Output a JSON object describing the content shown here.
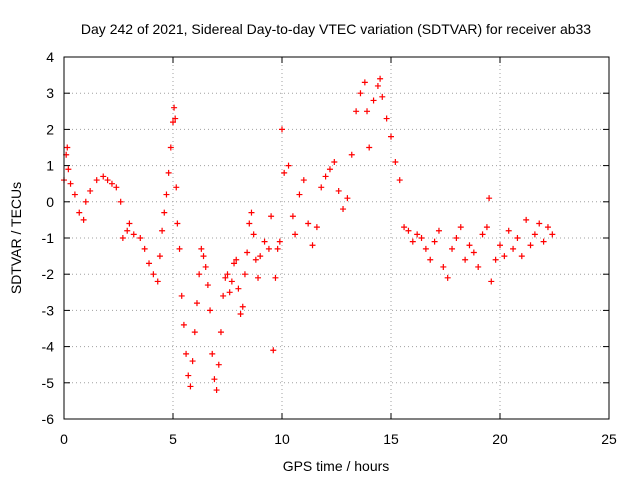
{
  "chart_data": {
    "type": "scatter",
    "title": "Day 242 of 2021, Sidereal Day-to-day VTEC variation (SDTVAR) for receiver ab33",
    "xlabel": "GPS time / hours",
    "ylabel": "SDTVAR / TECUs",
    "xlim": [
      0,
      25
    ],
    "ylim": [
      -6,
      4
    ],
    "xticks": [
      0,
      5,
      10,
      15,
      20,
      25
    ],
    "yticks": [
      -6,
      -5,
      -4,
      -3,
      -2,
      -1,
      0,
      1,
      2,
      3,
      4
    ],
    "grid": true,
    "marker": "plus",
    "color": "#ff0000",
    "series": [
      {
        "name": "SDTVAR",
        "points": [
          [
            0.0,
            0.6
          ],
          [
            0.1,
            1.3
          ],
          [
            0.15,
            1.5
          ],
          [
            0.2,
            0.9
          ],
          [
            0.3,
            0.5
          ],
          [
            0.5,
            0.2
          ],
          [
            0.7,
            -0.3
          ],
          [
            0.9,
            -0.5
          ],
          [
            1.0,
            0.0
          ],
          [
            1.2,
            0.3
          ],
          [
            1.5,
            0.6
          ],
          [
            1.8,
            0.7
          ],
          [
            2.0,
            0.6
          ],
          [
            2.2,
            0.5
          ],
          [
            2.4,
            0.4
          ],
          [
            2.6,
            0.0
          ],
          [
            2.7,
            -1.0
          ],
          [
            2.9,
            -0.8
          ],
          [
            3.0,
            -0.6
          ],
          [
            3.2,
            -0.9
          ],
          [
            3.5,
            -1.0
          ],
          [
            3.7,
            -1.3
          ],
          [
            3.9,
            -1.7
          ],
          [
            4.1,
            -2.0
          ],
          [
            4.3,
            -2.2
          ],
          [
            4.4,
            -1.5
          ],
          [
            4.5,
            -0.8
          ],
          [
            4.6,
            -0.3
          ],
          [
            4.7,
            0.2
          ],
          [
            4.8,
            0.8
          ],
          [
            4.9,
            1.5
          ],
          [
            5.0,
            2.2
          ],
          [
            5.05,
            2.6
          ],
          [
            5.1,
            2.3
          ],
          [
            5.15,
            0.4
          ],
          [
            5.2,
            -0.6
          ],
          [
            5.3,
            -1.3
          ],
          [
            5.4,
            -2.6
          ],
          [
            5.5,
            -3.4
          ],
          [
            5.6,
            -4.2
          ],
          [
            5.7,
            -4.8
          ],
          [
            5.8,
            -5.1
          ],
          [
            5.9,
            -4.4
          ],
          [
            6.0,
            -3.6
          ],
          [
            6.1,
            -2.8
          ],
          [
            6.2,
            -2.0
          ],
          [
            6.3,
            -1.3
          ],
          [
            6.4,
            -1.5
          ],
          [
            6.5,
            -1.8
          ],
          [
            6.6,
            -2.3
          ],
          [
            6.7,
            -3.0
          ],
          [
            6.8,
            -4.2
          ],
          [
            6.9,
            -4.9
          ],
          [
            7.0,
            -5.2
          ],
          [
            7.1,
            -4.5
          ],
          [
            7.2,
            -3.6
          ],
          [
            7.3,
            -2.6
          ],
          [
            7.4,
            -2.1
          ],
          [
            7.5,
            -2.0
          ],
          [
            7.6,
            -2.5
          ],
          [
            7.7,
            -2.2
          ],
          [
            7.8,
            -1.7
          ],
          [
            7.9,
            -1.6
          ],
          [
            8.0,
            -2.4
          ],
          [
            8.1,
            -3.1
          ],
          [
            8.2,
            -2.9
          ],
          [
            8.3,
            -2.0
          ],
          [
            8.4,
            -1.4
          ],
          [
            8.5,
            -0.6
          ],
          [
            8.6,
            -0.3
          ],
          [
            8.7,
            -0.9
          ],
          [
            8.8,
            -1.6
          ],
          [
            8.9,
            -2.1
          ],
          [
            9.0,
            -1.5
          ],
          [
            9.2,
            -1.1
          ],
          [
            9.4,
            -1.3
          ],
          [
            9.5,
            -0.4
          ],
          [
            9.6,
            -4.1
          ],
          [
            9.7,
            -2.1
          ],
          [
            9.8,
            -1.3
          ],
          [
            9.9,
            -1.1
          ],
          [
            10.0,
            2.0
          ],
          [
            10.1,
            0.8
          ],
          [
            10.3,
            1.0
          ],
          [
            10.5,
            -0.4
          ],
          [
            10.6,
            -0.9
          ],
          [
            10.8,
            0.2
          ],
          [
            11.0,
            0.6
          ],
          [
            11.2,
            -0.6
          ],
          [
            11.4,
            -1.2
          ],
          [
            11.6,
            -0.7
          ],
          [
            11.8,
            0.4
          ],
          [
            12.0,
            0.7
          ],
          [
            12.2,
            0.9
          ],
          [
            12.4,
            1.1
          ],
          [
            12.6,
            0.3
          ],
          [
            12.8,
            -0.2
          ],
          [
            13.0,
            0.1
          ],
          [
            13.2,
            1.3
          ],
          [
            13.4,
            2.5
          ],
          [
            13.6,
            3.0
          ],
          [
            13.8,
            3.3
          ],
          [
            13.9,
            2.5
          ],
          [
            14.0,
            1.5
          ],
          [
            14.2,
            2.8
          ],
          [
            14.4,
            3.2
          ],
          [
            14.5,
            3.4
          ],
          [
            14.6,
            2.9
          ],
          [
            14.8,
            2.3
          ],
          [
            15.0,
            1.8
          ],
          [
            15.2,
            1.1
          ],
          [
            15.4,
            0.6
          ],
          [
            15.6,
            -0.7
          ],
          [
            15.8,
            -0.8
          ],
          [
            16.0,
            -1.1
          ],
          [
            16.2,
            -0.9
          ],
          [
            16.4,
            -1.0
          ],
          [
            16.6,
            -1.3
          ],
          [
            16.8,
            -1.6
          ],
          [
            17.0,
            -1.1
          ],
          [
            17.2,
            -0.8
          ],
          [
            17.4,
            -1.8
          ],
          [
            17.6,
            -2.1
          ],
          [
            17.8,
            -1.3
          ],
          [
            18.0,
            -1.0
          ],
          [
            18.2,
            -0.7
          ],
          [
            18.4,
            -1.6
          ],
          [
            18.6,
            -1.2
          ],
          [
            18.8,
            -1.4
          ],
          [
            19.0,
            -1.8
          ],
          [
            19.2,
            -0.9
          ],
          [
            19.4,
            -0.7
          ],
          [
            19.5,
            0.1
          ],
          [
            19.6,
            -2.2
          ],
          [
            19.8,
            -1.6
          ],
          [
            20.0,
            -1.2
          ],
          [
            20.2,
            -1.5
          ],
          [
            20.4,
            -0.8
          ],
          [
            20.6,
            -1.3
          ],
          [
            20.8,
            -1.0
          ],
          [
            21.0,
            -1.5
          ],
          [
            21.2,
            -0.5
          ],
          [
            21.4,
            -1.2
          ],
          [
            21.6,
            -0.9
          ],
          [
            21.8,
            -0.6
          ],
          [
            22.0,
            -1.1
          ],
          [
            22.2,
            -0.7
          ],
          [
            22.4,
            -0.9
          ]
        ]
      }
    ]
  }
}
